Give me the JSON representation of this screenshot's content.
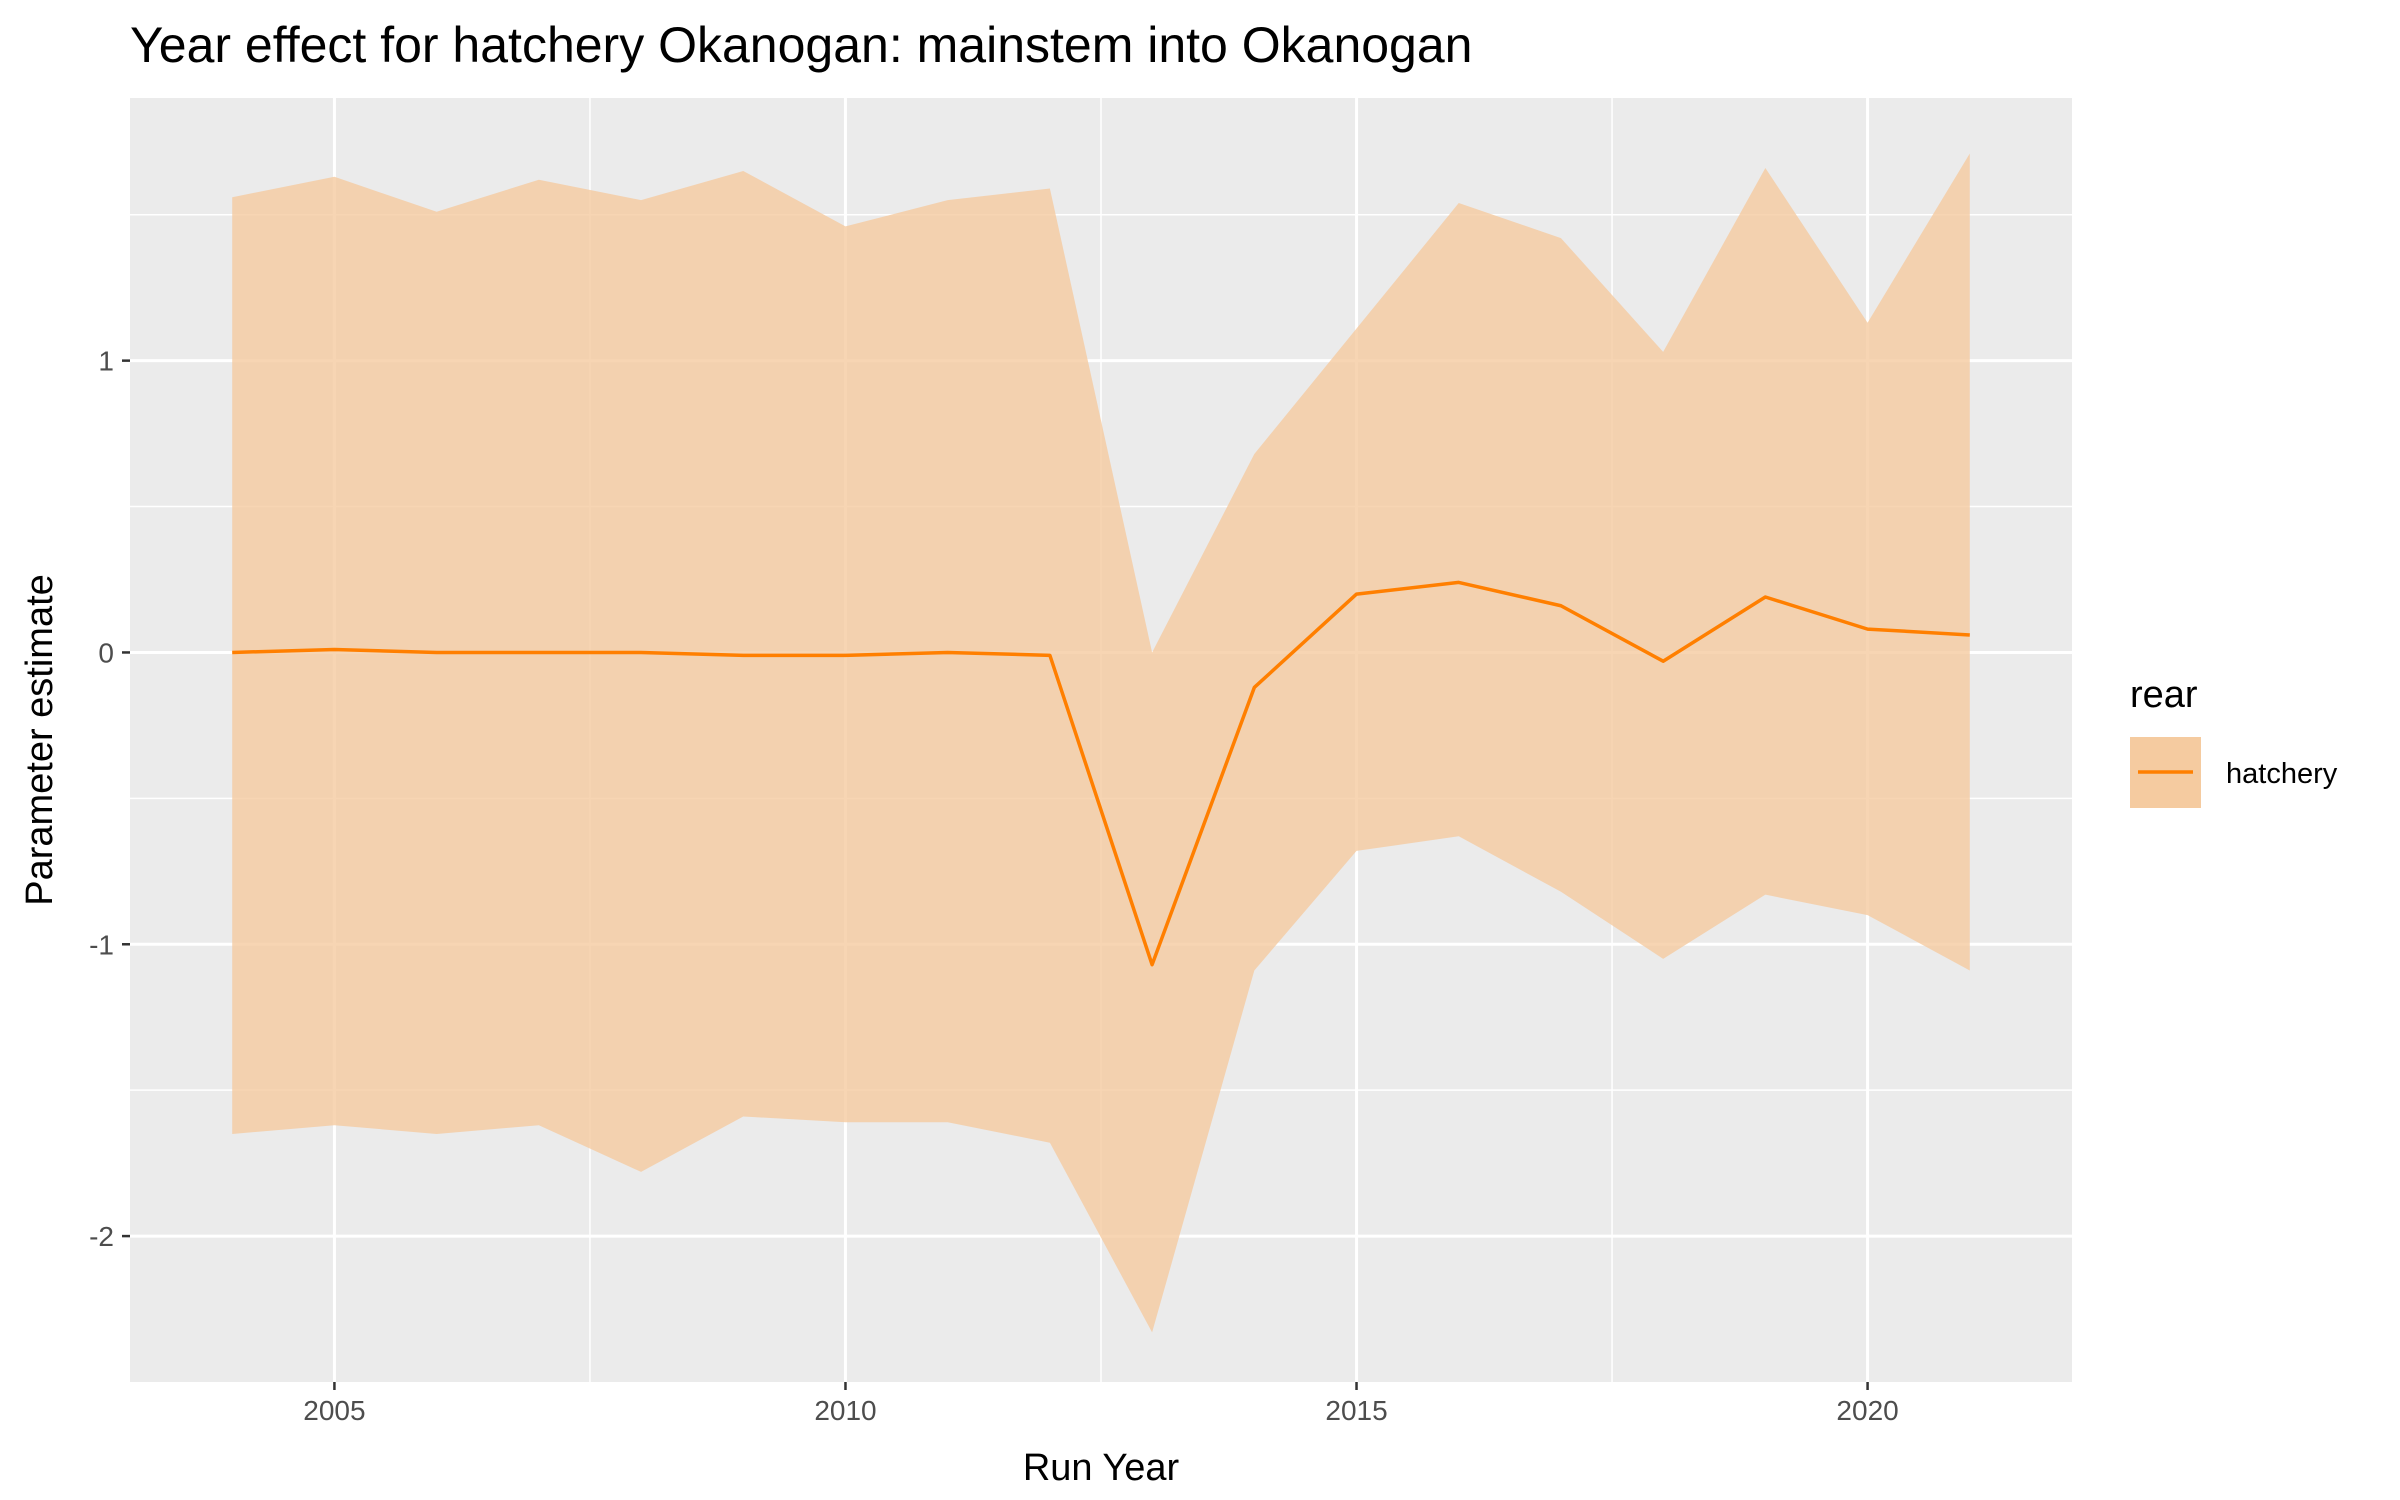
{
  "chart_data": {
    "type": "line",
    "title": "Year effect for hatchery Okanogan: mainstem into Okanogan",
    "xlabel": "Run Year",
    "ylabel": "Parameter estimate",
    "xlim": [
      2003,
      2022
    ],
    "ylim": [
      -2.5,
      1.9
    ],
    "x_ticks": [
      2005,
      2010,
      2015,
      2020
    ],
    "y_ticks": [
      -2,
      -1,
      0,
      1
    ],
    "grid": true,
    "legend": {
      "title": "rear",
      "position": "right"
    },
    "colors": {
      "line": "#ff7f00",
      "ribbon": "#f5cba0",
      "panel": "#ebebeb",
      "grid": "#ffffff"
    },
    "series": [
      {
        "name": "hatchery",
        "x": [
          2004,
          2005,
          2006,
          2007,
          2008,
          2009,
          2010,
          2011,
          2012,
          2013,
          2014,
          2015,
          2016,
          2017,
          2018,
          2019,
          2020,
          2021
        ],
        "y": [
          0.0,
          0.01,
          0.0,
          0.0,
          0.0,
          -0.01,
          -0.01,
          0.0,
          -0.01,
          -1.07,
          -0.12,
          0.2,
          0.24,
          0.16,
          -0.03,
          0.19,
          0.08,
          0.06
        ],
        "lower": [
          -1.65,
          -1.62,
          -1.65,
          -1.62,
          -1.78,
          -1.59,
          -1.61,
          -1.61,
          -1.68,
          -2.33,
          -1.09,
          -0.68,
          -0.63,
          -0.82,
          -1.05,
          -0.83,
          -0.9,
          -1.09
        ],
        "upper": [
          1.56,
          1.63,
          1.51,
          1.62,
          1.55,
          1.65,
          1.46,
          1.55,
          1.59,
          0.0,
          0.68,
          1.11,
          1.54,
          1.42,
          1.03,
          1.66,
          1.13,
          1.71
        ]
      }
    ]
  }
}
